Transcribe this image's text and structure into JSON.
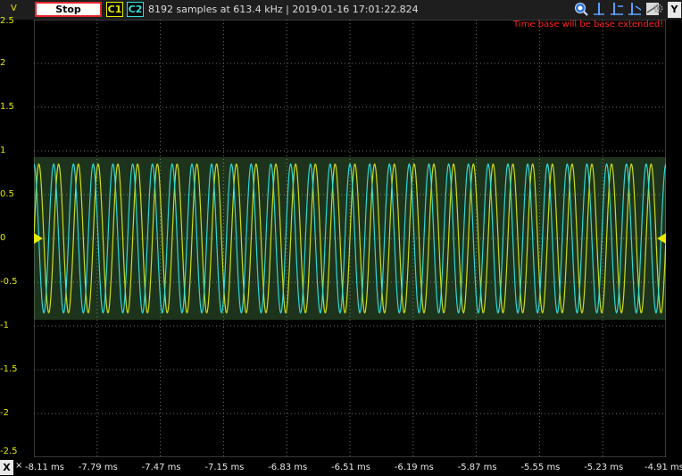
{
  "toolbar": {
    "run_button_label": "Stop",
    "channel1_label": "C1",
    "channel2_label": "C2",
    "status_text": "8192 samples at 613.4 kHz | 2019-01-16 17:01:22.824",
    "y_button_label": "Y",
    "icons": [
      "zoom-icon",
      "cursor-icon",
      "cursor-add-icon",
      "cursor-remove-icon",
      "measure-icon",
      "settings-gear-icon"
    ]
  },
  "plot": {
    "warning_text": "Time base will be base extended!",
    "y_unit": "V",
    "y_tick_labels": [
      "2.5",
      "2",
      "1.5",
      "1",
      "0.5",
      "0",
      "-0.5",
      "-1",
      "-1.5",
      "-2",
      "-2.5"
    ],
    "x_axis_button": "X",
    "x_tick_labels": [
      "-8.11 ms",
      "-7.79 ms",
      "-7.47 ms",
      "-7.15 ms",
      "-6.83 ms",
      "-6.51 ms",
      "-6.19 ms",
      "-5.87 ms",
      "-5.55 ms",
      "-5.23 ms",
      "-4.91 ms"
    ],
    "colors": {
      "channel1": "#e8e800",
      "channel2": "#2fe0e0",
      "grid": "#6e6e6e",
      "background": "#000000"
    }
  },
  "chart_data": {
    "type": "line",
    "title": "",
    "xlabel": "",
    "ylabel": "V",
    "xlim": [
      -8.11,
      -4.91
    ],
    "ylim": [
      -2.5,
      2.5
    ],
    "grid": true,
    "series": [
      {
        "name": "C1",
        "color": "#e8e800",
        "amplitude": 0.85,
        "offset": 0,
        "frequency_khz": 10,
        "phase_deg": 0
      },
      {
        "name": "C2",
        "color": "#2fe0e0",
        "amplitude": 0.85,
        "offset": 0,
        "frequency_khz": 10,
        "phase_deg": 90
      }
    ]
  }
}
